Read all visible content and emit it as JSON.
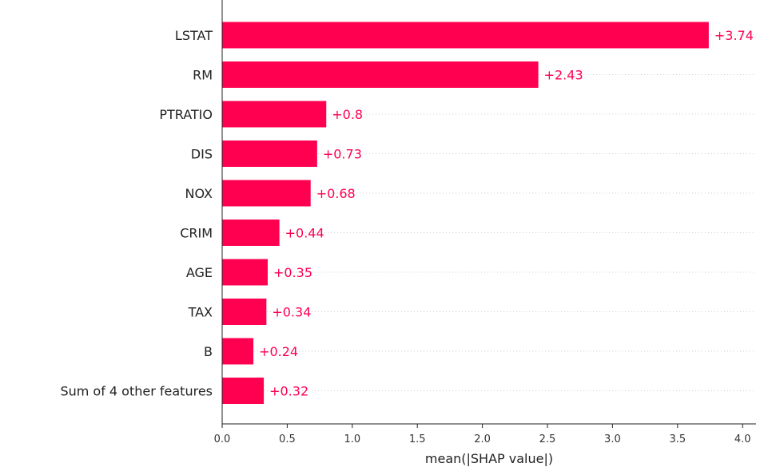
{
  "chart_data": {
    "type": "bar",
    "orientation": "horizontal",
    "categories": [
      "LSTAT",
      "RM",
      "PTRATIO",
      "DIS",
      "NOX",
      "CRIM",
      "AGE",
      "TAX",
      "B",
      "Sum of 4 other features"
    ],
    "values": [
      3.74,
      2.43,
      0.8,
      0.73,
      0.68,
      0.44,
      0.35,
      0.34,
      0.24,
      0.32
    ],
    "value_labels": [
      "+3.74",
      "+2.43",
      "+0.8",
      "+0.73",
      "+0.68",
      "+0.44",
      "+0.35",
      "+0.34",
      "+0.24",
      "+0.32"
    ],
    "title": "",
    "xlabel": "mean(|SHAP value|)",
    "ylabel": "",
    "xlim": [
      0,
      4.1
    ],
    "xticks": [
      0.0,
      0.5,
      1.0,
      1.5,
      2.0,
      2.5,
      3.0,
      3.5,
      4.0
    ],
    "xtick_labels": [
      "0.0",
      "0.5",
      "1.0",
      "1.5",
      "2.0",
      "2.5",
      "3.0",
      "3.5",
      "4.0"
    ],
    "grid": "dotted horizontal row lines",
    "bar_color": "#ff0051",
    "label_color": "#ff0051"
  }
}
